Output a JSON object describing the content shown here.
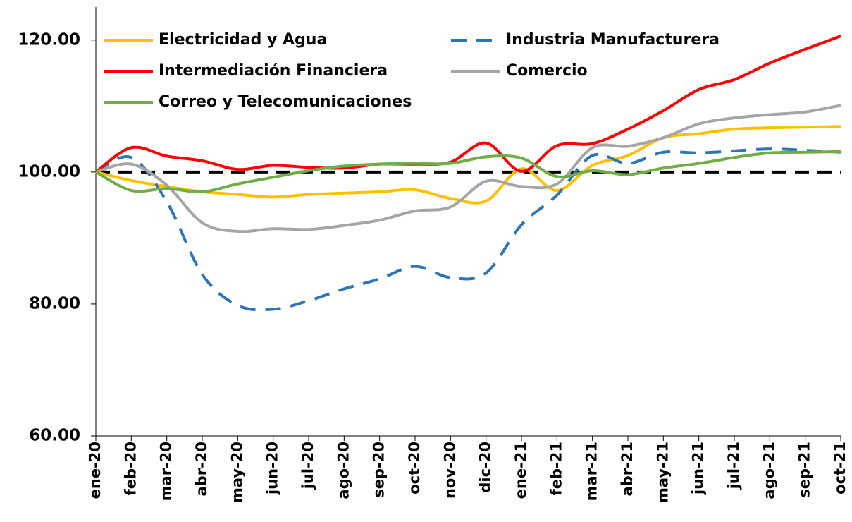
{
  "chart_data": {
    "type": "line",
    "categories": [
      "ene-20",
      "feb-20",
      "mar-20",
      "abr-20",
      "may-20",
      "jun-20",
      "jul-20",
      "ago-20",
      "sep-20",
      "oct-20",
      "nov-20",
      "dic-20",
      "ene-21",
      "feb-21",
      "mar-21",
      "abr-21",
      "may-21",
      "jun-21",
      "jul-21",
      "ago-21",
      "sep-21",
      "oct-21"
    ],
    "series": [
      {
        "name": "Electricidad y Agua",
        "color": "#FFC000",
        "dashed": false,
        "values": [
          100,
          98.7,
          97.8,
          97,
          96.6,
          96.2,
          96.6,
          96.8,
          97,
          97.3,
          96,
          95.6,
          100.5,
          97.2,
          101,
          102.5,
          105.2,
          105.8,
          106.5,
          106.7,
          106.8,
          106.9
        ]
      },
      {
        "name": "Industria Manufacturera",
        "color": "#2E75B6",
        "dashed": true,
        "values": [
          100,
          102.2,
          95.5,
          84.5,
          79.8,
          79.2,
          80.5,
          82.3,
          83.8,
          85.7,
          84,
          84.7,
          92,
          96.5,
          102.5,
          101.3,
          103,
          102.9,
          103.2,
          103.5,
          103.3,
          103
        ]
      },
      {
        "name": "Intermediación Financiera",
        "color": "#FF0000",
        "dashed": false,
        "values": [
          100,
          103.7,
          102.4,
          101.7,
          100.4,
          101,
          100.7,
          100.6,
          101.2,
          101.2,
          101.5,
          104.4,
          100.1,
          104,
          104.3,
          106.5,
          109.3,
          112.5,
          114,
          116.5,
          118.6,
          120.6
        ]
      },
      {
        "name": "Comercio",
        "color": "#A5A5A5",
        "dashed": false,
        "values": [
          100,
          101.2,
          98,
          92.3,
          91,
          91.4,
          91.3,
          91.9,
          92.7,
          94.1,
          94.7,
          98.6,
          97.8,
          98.2,
          103.7,
          103.9,
          105.2,
          107.3,
          108.2,
          108.7,
          109.1,
          110.1
        ]
      },
      {
        "name": "Correo y Telecomunicaciones",
        "color": "#70AD47",
        "dashed": false,
        "values": [
          100,
          97.2,
          97.5,
          97,
          98.2,
          99.2,
          100.2,
          100.9,
          101.2,
          101.3,
          101.3,
          102.3,
          102.1,
          99.3,
          100.2,
          99.6,
          100.6,
          101.3,
          102.2,
          102.9,
          103,
          103.1
        ]
      }
    ],
    "reference_line": {
      "value": 100,
      "color": "#000000"
    },
    "ylim": [
      60,
      125
    ],
    "yticks": [
      {
        "value": 60,
        "label": "60.00"
      },
      {
        "value": 80,
        "label": "80.00"
      },
      {
        "value": 100,
        "label": "100.00"
      },
      {
        "value": 120,
        "label": "120.00"
      }
    ],
    "grid": false
  }
}
